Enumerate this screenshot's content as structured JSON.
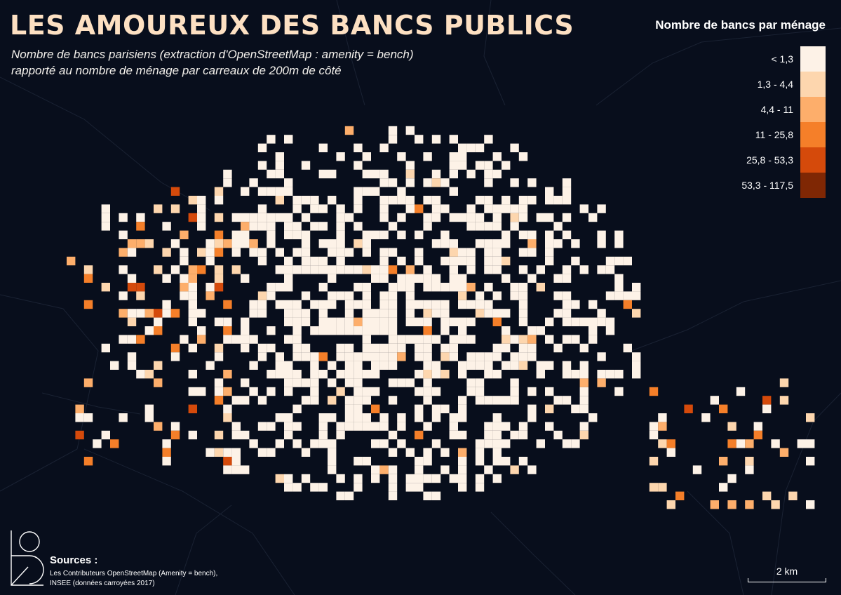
{
  "title": "LES AMOUREUX DES BANCS PUBLICS",
  "subtitle_line1": "Nombre de bancs parisiens (extraction d'OpenStreetMap : amenity = bench)",
  "subtitle_line2": "rapporté au nombre de ménage par carreaux de 200m de côté",
  "legend": {
    "title": "Nombre de bancs par ménage",
    "classes": [
      {
        "label": "< 1,3",
        "color": "#fdf2e7"
      },
      {
        "label": "1,3 - 4,4",
        "color": "#fdd6ae"
      },
      {
        "label": "4,4 - 11",
        "color": "#fdae6b"
      },
      {
        "label": "11 - 25,8",
        "color": "#f57f29"
      },
      {
        "label": "25,8 - 53,3",
        "color": "#d54a0b"
      },
      {
        "label": "53,3 - 117,5",
        "color": "#7f2704"
      }
    ]
  },
  "sources": {
    "title": "Sources :",
    "line1": "Les Contributeurs OpenStreetMap (Amenity = bench),",
    "line2": "INSEE (données carroyées 2017)"
  },
  "scale": {
    "label": "2 km"
  },
  "background_color": "#080e1c"
}
